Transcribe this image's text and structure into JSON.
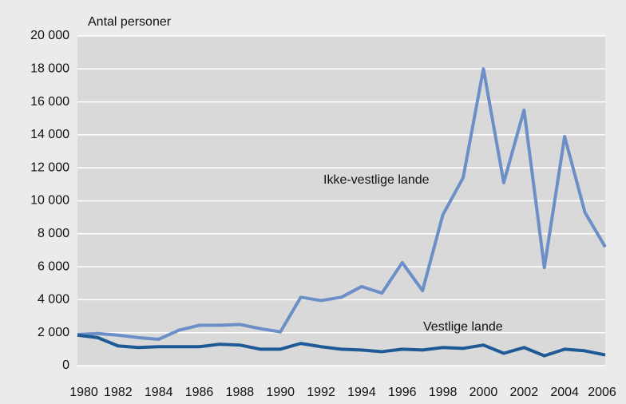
{
  "chart_data": {
    "type": "line",
    "y_axis_label": "Antal personer",
    "x": [
      1980,
      1981,
      1982,
      1983,
      1984,
      1985,
      1986,
      1987,
      1988,
      1989,
      1990,
      1991,
      1992,
      1993,
      1994,
      1995,
      1996,
      1997,
      1998,
      1999,
      2000,
      2001,
      2002,
      2003,
      2004,
      2005,
      2006
    ],
    "series": [
      {
        "name": "Ikke-vestlige lande",
        "color": "#6b8fc6",
        "values": [
          1900,
          1950,
          1850,
          1700,
          1600,
          2150,
          2450,
          2450,
          2500,
          2250,
          2050,
          4150,
          3950,
          4150,
          4800,
          4400,
          6250,
          4550,
          9150,
          11400,
          18000,
          11100,
          15500,
          5950,
          13900,
          9300,
          7200
        ]
      },
      {
        "name": "Vestlige lande",
        "color": "#1f5a96",
        "values": [
          1850,
          1700,
          1200,
          1100,
          1150,
          1150,
          1150,
          1300,
          1250,
          1000,
          1000,
          1350,
          1150,
          1000,
          950,
          850,
          1000,
          950,
          1100,
          1050,
          1250,
          750,
          1100,
          600,
          1000,
          900,
          650
        ]
      }
    ],
    "xlim": [
      1980,
      2006
    ],
    "xticks": [
      1980,
      1982,
      1984,
      1986,
      1988,
      1990,
      1992,
      1994,
      1996,
      1998,
      2000,
      2002,
      2004,
      2006
    ],
    "ylim": [
      0,
      20000
    ],
    "yticks": [
      0,
      {
        "value": 2000,
        "label": "2 000"
      },
      {
        "value": 4000,
        "label": "4 000"
      },
      {
        "value": 6000,
        "label": "6 000"
      },
      {
        "value": 8000,
        "label": "8 000"
      },
      {
        "value": 10000,
        "label": "10 000"
      },
      {
        "value": 12000,
        "label": "12 000"
      },
      {
        "value": 14000,
        "label": "14 000"
      },
      {
        "value": 16000,
        "label": "16 000"
      },
      {
        "value": 18000,
        "label": "18 000"
      },
      {
        "value": 20000,
        "label": "20 000"
      }
    ],
    "grid": true
  }
}
